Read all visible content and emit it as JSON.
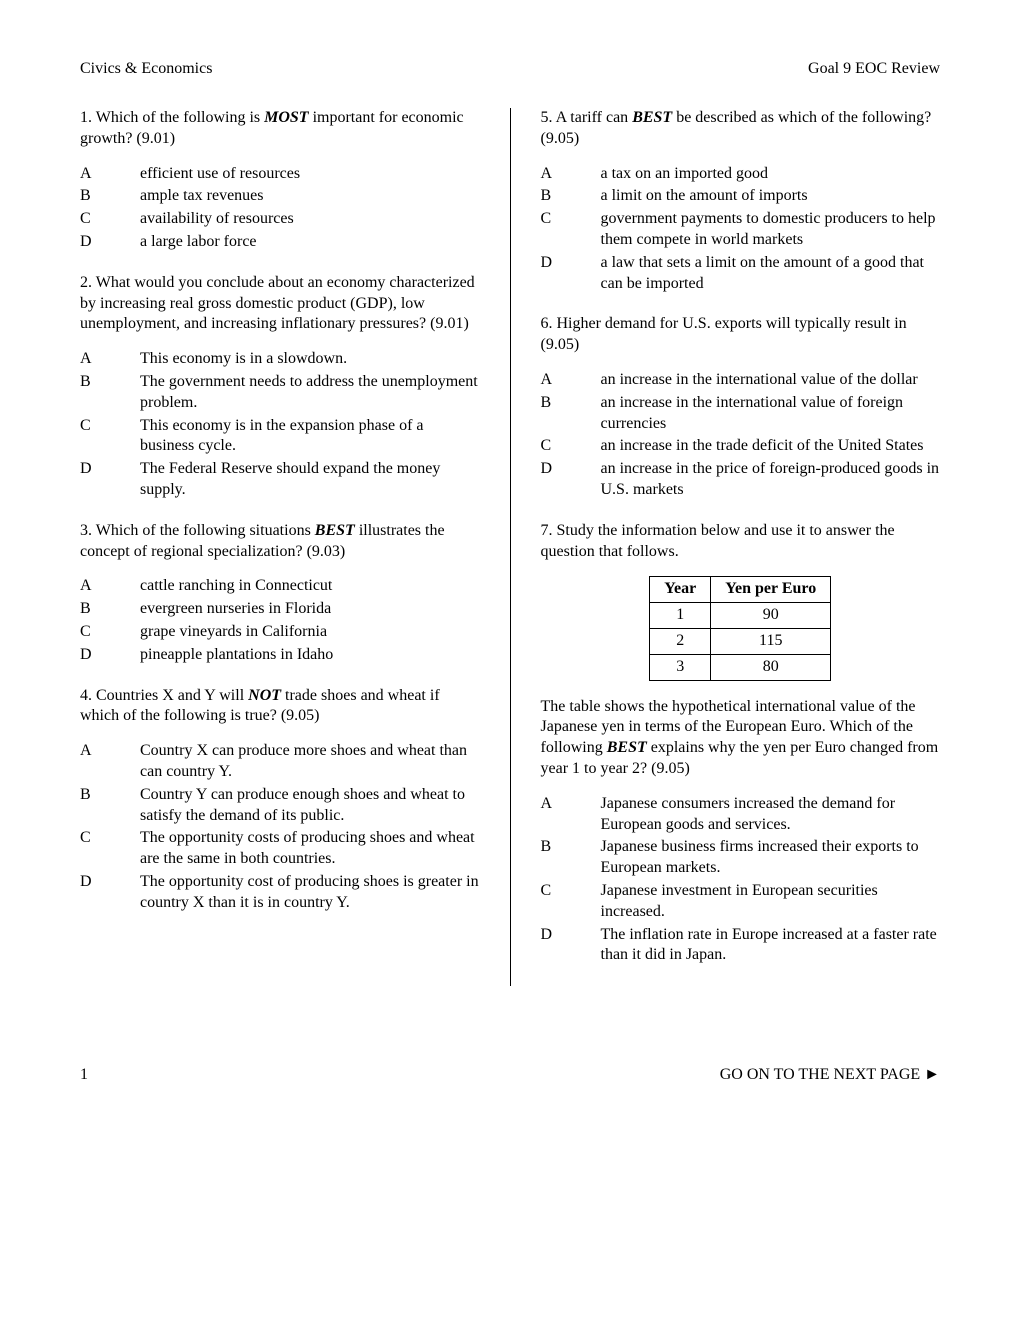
{
  "header": {
    "left": "Civics & Economics",
    "right": "Goal 9 EOC Review"
  },
  "left_column": {
    "q1": {
      "text_prefix": "1. Which of the following is ",
      "text_emph": "MOST",
      "text_suffix": " important for economic growth? (9.01)",
      "options": {
        "a": "efficient use of resources",
        "b": "ample tax revenues",
        "c": "availability of resources",
        "d": "a large labor force"
      }
    },
    "q2": {
      "text": "2. What would you conclude about an economy characterized by increasing real gross domestic product (GDP), low unemployment, and increasing inflationary pressures? (9.01)",
      "options": {
        "a": "This economy is in a slowdown.",
        "b": "The government needs to address the unemployment problem.",
        "c": "This economy is in the expansion phase of a business cycle.",
        "d": "The Federal Reserve should expand the money supply."
      }
    },
    "q3": {
      "text_prefix": "3. Which of the following situations ",
      "text_emph": "BEST",
      "text_suffix": " illustrates the concept of regional specialization? (9.03)",
      "options": {
        "a": "cattle ranching in Connecticut",
        "b": "evergreen nurseries in Florida",
        "c": "grape vineyards in California",
        "d": "pineapple plantations in Idaho"
      }
    },
    "q4": {
      "text_prefix": "4. Countries X and Y will ",
      "text_emph": "NOT",
      "text_suffix": " trade shoes and wheat if which of the following is true? (9.05)",
      "options": {
        "a": "Country X can produce more shoes and wheat than can country Y.",
        "b": "Country Y can produce enough shoes and wheat to satisfy the demand of its public.",
        "c": "The opportunity costs of producing shoes and wheat are the same in both countries.",
        "d": "The opportunity cost of producing shoes is greater in country X than it is in country Y."
      }
    }
  },
  "right_column": {
    "q5": {
      "text_prefix": "5. A tariff can ",
      "text_emph": "BEST",
      "text_suffix": " be described as which of the following? (9.05)",
      "options": {
        "a": "a tax on an imported good",
        "b": "a limit on the amount of imports",
        "c": "government payments to domestic producers to help them compete in world markets",
        "d": "a law that sets a limit on the amount of a good that can be imported"
      }
    },
    "q6": {
      "text": "6. Higher demand for U.S. exports will typically result in (9.05)",
      "options": {
        "a": "an increase in the international value of the dollar",
        "b": "an increase in the international value of foreign currencies",
        "c": "an increase in the trade deficit of the United States",
        "d": "an increase in the price of foreign-produced goods in U.S. markets"
      }
    },
    "q7": {
      "intro": "7. Study the information below and use it to answer the question that follows.",
      "table": {
        "col1": "Year",
        "col2": "Yen per Euro",
        "rows": [
          [
            "1",
            "90"
          ],
          [
            "2",
            "115"
          ],
          [
            "3",
            "80"
          ]
        ]
      },
      "text_prefix": "The table shows the hypothetical international value of the Japanese yen in terms of the European Euro. Which of the following ",
      "text_emph": "BEST",
      "text_suffix": " explains why the yen per Euro changed from year 1 to year 2? (9.05)",
      "options": {
        "a": "Japanese consumers increased the demand for European goods and services.",
        "b": "Japanese business firms increased their exports to European markets.",
        "c": "Japanese investment in European securities increased.",
        "d": "The inflation rate in Europe increased at a faster rate than it did in Japan."
      }
    }
  },
  "footer": {
    "page": "1",
    "next": "GO ON TO THE NEXT PAGE ►"
  },
  "labels": {
    "A": "A",
    "B": "B",
    "C": "C",
    "D": "D"
  }
}
